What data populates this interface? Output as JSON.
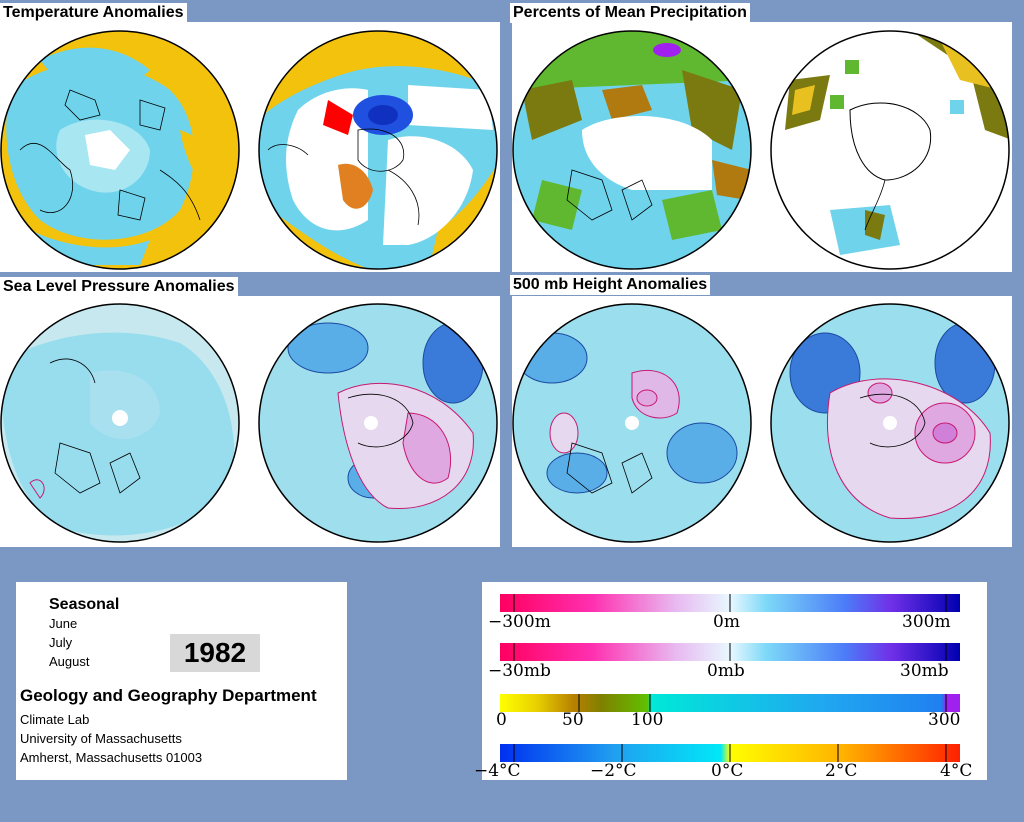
{
  "panels": {
    "temperature": {
      "title": "Temperature Anomalies"
    },
    "precipitation": {
      "title": "Percents of Mean Precipitation"
    },
    "slp": {
      "title": "Sea Level Pressure Anomalies"
    },
    "height": {
      "title": "500 mb Height Anomalies"
    }
  },
  "info": {
    "period": "Seasonal",
    "months": [
      "June",
      "July",
      "August"
    ],
    "year": "1982",
    "department": "Geology and Geography Department",
    "address": [
      "Climate Lab",
      "University of Massachusetts",
      "Amherst, Massachusetts 01003"
    ]
  },
  "legend": {
    "height_scale": [
      "−300m",
      "0m",
      "300m"
    ],
    "pressure_scale": [
      "−30mb",
      "0mb",
      "30mb"
    ],
    "precip_scale": [
      "0",
      "50",
      "100",
      "300"
    ],
    "temp_scale": [
      "−4°C",
      "−2°C",
      "0°C",
      "2°C",
      "4°C"
    ]
  },
  "colors": {
    "background": "#7b97c3",
    "cyan": "#6fd3ec",
    "yellow": "#f2c20c",
    "pale_blue": "#c7e8ef",
    "magenta": "#ff0090",
    "blue": "#0010c0",
    "red": "#ff0000"
  }
}
